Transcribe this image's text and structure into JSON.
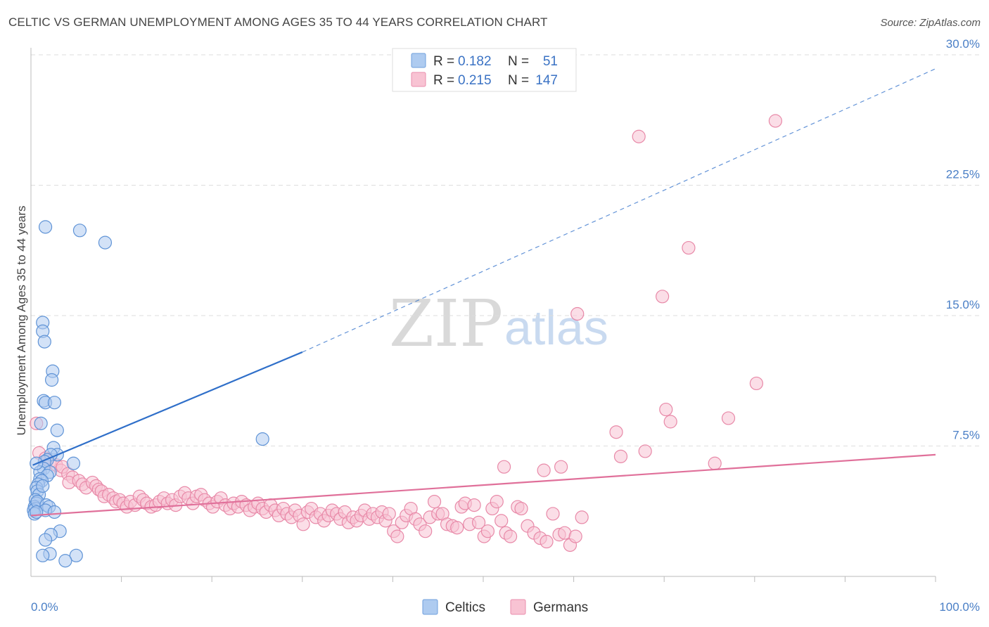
{
  "header": {
    "title": "CELTIC VS GERMAN UNEMPLOYMENT AMONG AGES 35 TO 44 YEARS CORRELATION CHART",
    "source": "Source: ZipAtlas.com"
  },
  "watermark": {
    "zip": "ZIP",
    "atlas": "atlas"
  },
  "legend": {
    "series": [
      {
        "name": "Celtics",
        "r_label": "R =",
        "r_value": "0.182",
        "n_label": "N =",
        "n_value": "51",
        "fill": "#aecbf0",
        "stroke": "#6f9fdc"
      },
      {
        "name": "Germans",
        "r_label": "R =",
        "r_value": "0.215",
        "n_label": "N =",
        "n_value": "147",
        "fill": "#f8c3d3",
        "stroke": "#ea8eac"
      }
    ]
  },
  "colors": {
    "celtics_fill": "#aecbf0",
    "celtics_stroke": "#5f93d6",
    "celtics_line": "#2f6fc9",
    "germans_fill": "#f8c3d3",
    "germans_stroke": "#e889a8",
    "germans_line": "#e0709a",
    "grid": "#dddddd",
    "axis_text": "#4a7fc6"
  },
  "chart_data": {
    "type": "scatter",
    "title": "CELTIC VS GERMAN UNEMPLOYMENT AMONG AGES 35 TO 44 YEARS CORRELATION CHART",
    "xlabel": "",
    "ylabel": "Unemployment Among Ages 35 to 44 years",
    "xlim": [
      0,
      100
    ],
    "ylim": [
      0,
      30
    ],
    "x_tick_labels": {
      "left": "0.0%",
      "right": "100.0%"
    },
    "y_ticks": [
      {
        "value": 7.5,
        "label": "7.5%"
      },
      {
        "value": 15,
        "label": "15.0%"
      },
      {
        "value": 22.5,
        "label": "22.5%"
      },
      {
        "value": 30,
        "label": "30.0%"
      }
    ],
    "legend_position": "top-center",
    "series": [
      {
        "name": "Celtics",
        "r": 0.182,
        "n": 51,
        "trend": {
          "x_start": 0.2,
          "y_start": 6.4,
          "x_solid_end": 30,
          "y_solid_end": 12.9,
          "x_dash_end": 100,
          "y_dash_end": 29.2
        },
        "points": [
          [
            1.6,
            20.1
          ],
          [
            5.4,
            19.9
          ],
          [
            8.2,
            19.2
          ],
          [
            1.3,
            14.6
          ],
          [
            1.3,
            14.1
          ],
          [
            1.5,
            13.5
          ],
          [
            2.4,
            11.8
          ],
          [
            2.3,
            11.3
          ],
          [
            1.4,
            10.1
          ],
          [
            1.6,
            10.0
          ],
          [
            2.6,
            10.0
          ],
          [
            1.1,
            8.8
          ],
          [
            2.9,
            8.4
          ],
          [
            25.6,
            7.9
          ],
          [
            2.5,
            7.4
          ],
          [
            2.9,
            7.0
          ],
          [
            2.2,
            7.0
          ],
          [
            1.8,
            6.7
          ],
          [
            1.5,
            6.6
          ],
          [
            4.7,
            6.5
          ],
          [
            1.4,
            6.2
          ],
          [
            1.0,
            6.0
          ],
          [
            2.1,
            6.0
          ],
          [
            1.8,
            5.8
          ],
          [
            1.0,
            5.6
          ],
          [
            1.2,
            5.5
          ],
          [
            0.8,
            5.3
          ],
          [
            0.6,
            5.1
          ],
          [
            0.7,
            4.9
          ],
          [
            0.9,
            4.7
          ],
          [
            0.5,
            4.4
          ],
          [
            0.6,
            4.2
          ],
          [
            0.4,
            4.0
          ],
          [
            0.5,
            3.9
          ],
          [
            0.3,
            3.8
          ],
          [
            0.7,
            4.3
          ],
          [
            1.7,
            4.1
          ],
          [
            2.0,
            4.0
          ],
          [
            1.6,
            3.8
          ],
          [
            2.6,
            3.7
          ],
          [
            0.4,
            3.6
          ],
          [
            3.2,
            2.6
          ],
          [
            2.2,
            2.4
          ],
          [
            1.6,
            2.1
          ],
          [
            2.1,
            1.3
          ],
          [
            1.3,
            1.2
          ],
          [
            5.0,
            1.2
          ],
          [
            3.8,
            0.9
          ],
          [
            0.6,
            6.5
          ],
          [
            1.3,
            5.2
          ],
          [
            0.6,
            3.7
          ]
        ]
      },
      {
        "name": "Germans",
        "r": 0.215,
        "n": 147,
        "trend": {
          "x_start": 0,
          "y_start": 3.5,
          "x_end": 100,
          "y_end": 7.0
        },
        "points": [
          [
            82.3,
            26.2
          ],
          [
            67.2,
            25.3
          ],
          [
            72.7,
            18.9
          ],
          [
            69.8,
            16.1
          ],
          [
            60.4,
            15.1
          ],
          [
            80.2,
            11.1
          ],
          [
            70.2,
            9.6
          ],
          [
            70.7,
            8.9
          ],
          [
            77.1,
            9.1
          ],
          [
            64.7,
            8.3
          ],
          [
            0.6,
            8.8
          ],
          [
            67.9,
            7.2
          ],
          [
            65.2,
            6.9
          ],
          [
            75.6,
            6.5
          ],
          [
            52.3,
            6.3
          ],
          [
            56.7,
            6.1
          ],
          [
            58.6,
            6.3
          ],
          [
            0.9,
            7.1
          ],
          [
            1.6,
            6.8
          ],
          [
            2.1,
            6.6
          ],
          [
            2.8,
            6.4
          ],
          [
            3.3,
            6.1
          ],
          [
            3.5,
            6.3
          ],
          [
            4.1,
            5.9
          ],
          [
            4.6,
            5.7
          ],
          [
            4.2,
            5.4
          ],
          [
            5.3,
            5.5
          ],
          [
            5.7,
            5.3
          ],
          [
            6.1,
            5.1
          ],
          [
            6.8,
            5.4
          ],
          [
            7.2,
            5.2
          ],
          [
            7.5,
            5.0
          ],
          [
            7.8,
            4.9
          ],
          [
            8.1,
            4.6
          ],
          [
            8.6,
            4.7
          ],
          [
            9.1,
            4.5
          ],
          [
            9.4,
            4.3
          ],
          [
            9.8,
            4.4
          ],
          [
            10.2,
            4.2
          ],
          [
            10.6,
            4.0
          ],
          [
            11.0,
            4.3
          ],
          [
            11.5,
            4.1
          ],
          [
            12.0,
            4.6
          ],
          [
            12.4,
            4.4
          ],
          [
            12.8,
            4.2
          ],
          [
            13.3,
            4.0
          ],
          [
            13.8,
            4.1
          ],
          [
            14.2,
            4.3
          ],
          [
            14.7,
            4.5
          ],
          [
            15.1,
            4.2
          ],
          [
            15.6,
            4.4
          ],
          [
            16.0,
            4.1
          ],
          [
            16.5,
            4.6
          ],
          [
            17.0,
            4.8
          ],
          [
            17.4,
            4.5
          ],
          [
            17.9,
            4.2
          ],
          [
            18.3,
            4.6
          ],
          [
            18.8,
            4.7
          ],
          [
            19.2,
            4.4
          ],
          [
            19.7,
            4.2
          ],
          [
            20.1,
            4.0
          ],
          [
            20.6,
            4.3
          ],
          [
            21.0,
            4.5
          ],
          [
            21.5,
            4.1
          ],
          [
            22.0,
            3.9
          ],
          [
            22.4,
            4.2
          ],
          [
            22.9,
            4.0
          ],
          [
            23.3,
            4.3
          ],
          [
            23.8,
            4.1
          ],
          [
            24.2,
            3.8
          ],
          [
            24.7,
            4.0
          ],
          [
            25.1,
            4.2
          ],
          [
            25.6,
            3.9
          ],
          [
            26.0,
            3.7
          ],
          [
            26.5,
            4.1
          ],
          [
            27.0,
            3.8
          ],
          [
            27.4,
            3.5
          ],
          [
            27.9,
            3.9
          ],
          [
            28.3,
            3.6
          ],
          [
            28.8,
            3.4
          ],
          [
            29.2,
            3.8
          ],
          [
            29.7,
            3.5
          ],
          [
            30.1,
            3.0
          ],
          [
            30.6,
            3.7
          ],
          [
            31.0,
            3.9
          ],
          [
            31.5,
            3.4
          ],
          [
            32.0,
            3.6
          ],
          [
            32.4,
            3.2
          ],
          [
            32.9,
            3.5
          ],
          [
            33.3,
            3.8
          ],
          [
            33.8,
            3.6
          ],
          [
            34.2,
            3.3
          ],
          [
            34.7,
            3.7
          ],
          [
            35.1,
            3.1
          ],
          [
            35.6,
            3.4
          ],
          [
            36.0,
            3.2
          ],
          [
            36.5,
            3.5
          ],
          [
            36.9,
            3.8
          ],
          [
            37.4,
            3.3
          ],
          [
            37.8,
            3.6
          ],
          [
            38.3,
            3.4
          ],
          [
            38.8,
            3.7
          ],
          [
            39.2,
            3.2
          ],
          [
            39.6,
            3.6
          ],
          [
            40.1,
            2.6
          ],
          [
            40.5,
            2.3
          ],
          [
            41.0,
            3.1
          ],
          [
            41.5,
            3.5
          ],
          [
            42.0,
            3.9
          ],
          [
            42.5,
            3.3
          ],
          [
            43.0,
            3.0
          ],
          [
            43.6,
            2.6
          ],
          [
            44.1,
            3.4
          ],
          [
            44.6,
            4.3
          ],
          [
            45.0,
            3.6
          ],
          [
            45.5,
            3.6
          ],
          [
            46.0,
            3.0
          ],
          [
            46.6,
            2.9
          ],
          [
            47.1,
            2.8
          ],
          [
            47.6,
            4.0
          ],
          [
            48.0,
            4.2
          ],
          [
            48.5,
            3.0
          ],
          [
            49.0,
            4.1
          ],
          [
            49.5,
            3.1
          ],
          [
            50.1,
            2.3
          ],
          [
            50.5,
            2.6
          ],
          [
            51.0,
            3.9
          ],
          [
            51.5,
            4.3
          ],
          [
            52.0,
            3.2
          ],
          [
            52.5,
            2.5
          ],
          [
            53.0,
            2.3
          ],
          [
            53.8,
            4.0
          ],
          [
            54.2,
            3.9
          ],
          [
            54.9,
            2.9
          ],
          [
            55.6,
            2.5
          ],
          [
            56.3,
            2.2
          ],
          [
            57.0,
            2.0
          ],
          [
            57.7,
            3.6
          ],
          [
            58.4,
            2.4
          ],
          [
            59.0,
            2.5
          ],
          [
            59.6,
            1.8
          ],
          [
            60.2,
            2.3
          ],
          [
            60.9,
            3.4
          ]
        ]
      }
    ]
  },
  "axis": {
    "y_title": "Unemployment Among Ages 35 to 44 years",
    "x_left": "0.0%",
    "x_right": "100.0%"
  }
}
